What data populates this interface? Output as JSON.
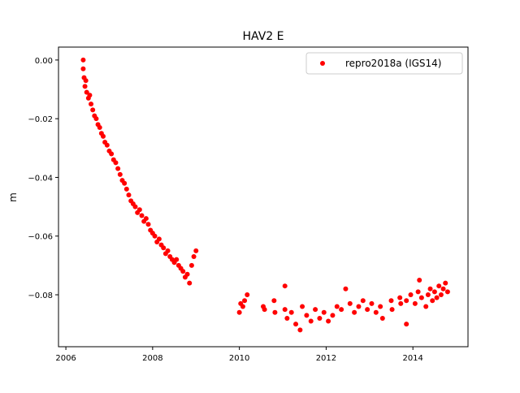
{
  "chart_data": {
    "type": "scatter",
    "title": "HAV2 E",
    "xlabel": "",
    "ylabel": "m",
    "xlim": [
      2005.83,
      2015.27
    ],
    "ylim": [
      -0.0977,
      0.0044
    ],
    "xticks": [
      2006,
      2008,
      2010,
      2012,
      2014
    ],
    "xtick_labels": [
      "2006",
      "2008",
      "2010",
      "2012",
      "2014"
    ],
    "yticks": [
      0.0,
      -0.02,
      -0.04,
      -0.06,
      -0.08
    ],
    "ytick_labels": [
      "0.00",
      "−0.02",
      "−0.04",
      "−0.06",
      "−0.08"
    ],
    "grid": false,
    "legend_position": "top-right",
    "series": [
      {
        "name": "repro2018a (IGS14)",
        "color": "#ff0000",
        "marker": "circle",
        "points": [
          [
            2006.4,
            0.0
          ],
          [
            2006.4,
            -0.003
          ],
          [
            2006.42,
            -0.006
          ],
          [
            2006.44,
            -0.009
          ],
          [
            2006.46,
            -0.007
          ],
          [
            2006.48,
            -0.011
          ],
          [
            2006.52,
            -0.013
          ],
          [
            2006.55,
            -0.012
          ],
          [
            2006.58,
            -0.015
          ],
          [
            2006.62,
            -0.017
          ],
          [
            2006.66,
            -0.019
          ],
          [
            2006.7,
            -0.02
          ],
          [
            2006.74,
            -0.022
          ],
          [
            2006.78,
            -0.023
          ],
          [
            2006.82,
            -0.025
          ],
          [
            2006.86,
            -0.026
          ],
          [
            2006.9,
            -0.028
          ],
          [
            2006.95,
            -0.029
          ],
          [
            2007.0,
            -0.031
          ],
          [
            2007.05,
            -0.032
          ],
          [
            2007.1,
            -0.034
          ],
          [
            2007.15,
            -0.035
          ],
          [
            2007.2,
            -0.037
          ],
          [
            2007.25,
            -0.039
          ],
          [
            2007.3,
            -0.041
          ],
          [
            2007.35,
            -0.042
          ],
          [
            2007.4,
            -0.044
          ],
          [
            2007.45,
            -0.046
          ],
          [
            2007.5,
            -0.048
          ],
          [
            2007.55,
            -0.049
          ],
          [
            2007.6,
            -0.05
          ],
          [
            2007.65,
            -0.052
          ],
          [
            2007.7,
            -0.051
          ],
          [
            2007.75,
            -0.053
          ],
          [
            2007.8,
            -0.055
          ],
          [
            2007.85,
            -0.054
          ],
          [
            2007.9,
            -0.056
          ],
          [
            2007.95,
            -0.058
          ],
          [
            2008.0,
            -0.059
          ],
          [
            2008.05,
            -0.06
          ],
          [
            2008.1,
            -0.062
          ],
          [
            2008.15,
            -0.061
          ],
          [
            2008.2,
            -0.063
          ],
          [
            2008.25,
            -0.064
          ],
          [
            2008.3,
            -0.066
          ],
          [
            2008.35,
            -0.065
          ],
          [
            2008.4,
            -0.067
          ],
          [
            2008.45,
            -0.068
          ],
          [
            2008.5,
            -0.069
          ],
          [
            2008.55,
            -0.068
          ],
          [
            2008.6,
            -0.07
          ],
          [
            2008.65,
            -0.071
          ],
          [
            2008.7,
            -0.072
          ],
          [
            2008.75,
            -0.074
          ],
          [
            2008.8,
            -0.073
          ],
          [
            2008.85,
            -0.076
          ],
          [
            2008.9,
            -0.07
          ],
          [
            2008.95,
            -0.067
          ],
          [
            2009.0,
            -0.065
          ],
          [
            2010.0,
            -0.086
          ],
          [
            2010.03,
            -0.083
          ],
          [
            2010.08,
            -0.084
          ],
          [
            2010.12,
            -0.082
          ],
          [
            2010.18,
            -0.08
          ],
          [
            2010.55,
            -0.084
          ],
          [
            2010.58,
            -0.085
          ],
          [
            2010.8,
            -0.082
          ],
          [
            2010.82,
            -0.086
          ],
          [
            2011.05,
            -0.077
          ],
          [
            2011.05,
            -0.085
          ],
          [
            2011.1,
            -0.088
          ],
          [
            2011.2,
            -0.086
          ],
          [
            2011.3,
            -0.09
          ],
          [
            2011.4,
            -0.092
          ],
          [
            2011.45,
            -0.084
          ],
          [
            2011.55,
            -0.087
          ],
          [
            2011.65,
            -0.089
          ],
          [
            2011.75,
            -0.085
          ],
          [
            2011.85,
            -0.088
          ],
          [
            2011.95,
            -0.086
          ],
          [
            2012.05,
            -0.089
          ],
          [
            2012.15,
            -0.087
          ],
          [
            2012.25,
            -0.084
          ],
          [
            2012.35,
            -0.085
          ],
          [
            2012.45,
            -0.078
          ],
          [
            2012.55,
            -0.083
          ],
          [
            2012.65,
            -0.086
          ],
          [
            2012.75,
            -0.084
          ],
          [
            2012.85,
            -0.082
          ],
          [
            2012.95,
            -0.085
          ],
          [
            2013.05,
            -0.083
          ],
          [
            2013.15,
            -0.086
          ],
          [
            2013.25,
            -0.084
          ],
          [
            2013.3,
            -0.088
          ],
          [
            2013.5,
            -0.082
          ],
          [
            2013.52,
            -0.085
          ],
          [
            2013.7,
            -0.081
          ],
          [
            2013.72,
            -0.083
          ],
          [
            2013.85,
            -0.09
          ],
          [
            2013.85,
            -0.082
          ],
          [
            2013.95,
            -0.08
          ],
          [
            2014.05,
            -0.083
          ],
          [
            2014.12,
            -0.079
          ],
          [
            2014.15,
            -0.075
          ],
          [
            2014.2,
            -0.081
          ],
          [
            2014.3,
            -0.084
          ],
          [
            2014.35,
            -0.08
          ],
          [
            2014.4,
            -0.078
          ],
          [
            2014.45,
            -0.082
          ],
          [
            2014.5,
            -0.079
          ],
          [
            2014.55,
            -0.081
          ],
          [
            2014.6,
            -0.077
          ],
          [
            2014.65,
            -0.08
          ],
          [
            2014.7,
            -0.078
          ],
          [
            2014.75,
            -0.076
          ],
          [
            2014.8,
            -0.079
          ]
        ]
      }
    ]
  }
}
